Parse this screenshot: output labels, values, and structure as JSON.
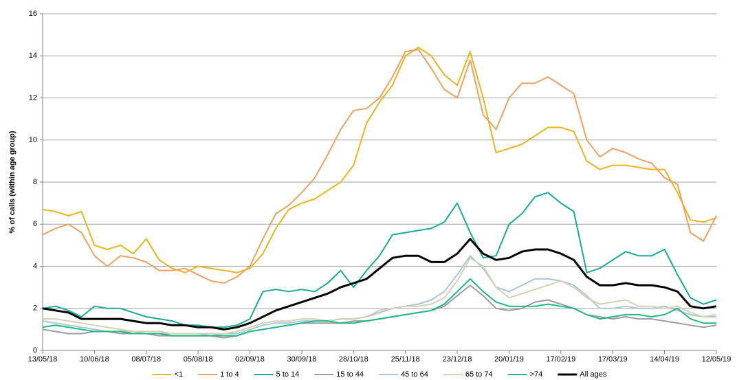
{
  "chart_data": {
    "type": "line",
    "y_label": "% of calls (within age group)",
    "x": [
      "13/05/18",
      "20/05/18",
      "27/05/18",
      "03/06/18",
      "10/06/18",
      "17/06/18",
      "24/06/18",
      "01/07/18",
      "08/07/18",
      "15/07/18",
      "22/07/18",
      "29/07/18",
      "05/08/18",
      "12/08/18",
      "19/08/18",
      "26/08/18",
      "02/09/18",
      "09/09/18",
      "16/09/18",
      "23/09/18",
      "30/09/18",
      "07/10/18",
      "14/10/18",
      "21/10/18",
      "28/10/18",
      "04/11/18",
      "11/11/18",
      "18/11/18",
      "25/11/18",
      "02/12/18",
      "09/12/18",
      "16/12/18",
      "23/12/18",
      "30/12/18",
      "06/01/19",
      "13/01/19",
      "20/01/19",
      "27/01/19",
      "03/02/19",
      "10/02/19",
      "17/02/19",
      "24/02/19",
      "03/03/19",
      "10/03/19",
      "17/03/19",
      "24/03/19",
      "31/03/19",
      "07/04/19",
      "14/04/19",
      "21/04/19",
      "28/04/19",
      "05/05/19",
      "12/05/19"
    ],
    "xlim": [
      "13/05/18",
      "12/05/19"
    ],
    "xticks": [
      "13/05/18",
      "10/06/18",
      "08/07/18",
      "05/08/18",
      "02/09/18",
      "30/09/18",
      "28/10/18",
      "25/11/18",
      "23/12/18",
      "20/01/19",
      "17/02/19",
      "17/03/19",
      "14/04/19",
      "12/05/19"
    ],
    "ylim": [
      0,
      16
    ],
    "yticks": [
      0,
      2,
      4,
      6,
      8,
      10,
      12,
      14,
      16
    ],
    "grid": true,
    "legend": "bottom",
    "series": [
      {
        "name": "<1",
        "color": "#e8b420",
        "width": 2,
        "values": [
          6.7,
          6.6,
          6.4,
          6.6,
          5.0,
          4.8,
          5.0,
          4.6,
          5.3,
          4.3,
          3.9,
          3.7,
          4.0,
          3.9,
          3.8,
          3.7,
          3.9,
          4.6,
          5.8,
          6.7,
          7.0,
          7.2,
          7.6,
          8.0,
          8.8,
          10.8,
          11.8,
          12.6,
          14.0,
          14.4,
          14.0,
          13.1,
          12.6,
          14.2,
          12.0,
          9.4,
          9.6,
          9.8,
          10.2,
          10.6,
          10.6,
          10.4,
          9.0,
          8.6,
          8.8,
          8.8,
          8.7,
          8.6,
          8.6,
          7.5,
          6.2,
          6.1,
          6.3
        ]
      },
      {
        "name": "1 to 4",
        "color": "#f0a060",
        "width": 2,
        "values": [
          5.5,
          5.8,
          6.0,
          5.6,
          4.5,
          4.0,
          4.5,
          4.4,
          4.2,
          3.8,
          3.8,
          3.9,
          3.6,
          3.3,
          3.2,
          3.5,
          4.0,
          5.3,
          6.5,
          6.9,
          7.5,
          8.2,
          9.3,
          10.5,
          11.4,
          11.5,
          12.0,
          13.0,
          14.2,
          14.3,
          13.4,
          12.4,
          12.0,
          13.8,
          11.2,
          10.5,
          12.0,
          12.7,
          12.7,
          13.0,
          12.6,
          12.2,
          10.0,
          9.2,
          9.6,
          9.4,
          9.1,
          8.9,
          8.2,
          7.9,
          5.6,
          5.2,
          6.4
        ]
      },
      {
        "name": "5 to 14",
        "color": "#1aa898",
        "width": 2,
        "values": [
          2.0,
          2.1,
          1.9,
          1.6,
          2.1,
          2.0,
          2.0,
          1.8,
          1.6,
          1.5,
          1.4,
          1.2,
          1.2,
          1.1,
          1.1,
          1.2,
          1.5,
          2.8,
          2.9,
          2.8,
          2.9,
          2.8,
          3.2,
          3.8,
          3.0,
          3.8,
          4.5,
          5.5,
          5.6,
          5.7,
          5.8,
          6.1,
          7.0,
          5.6,
          4.4,
          4.5,
          6.0,
          6.5,
          7.3,
          7.5,
          7.0,
          6.6,
          3.7,
          3.9,
          4.3,
          4.7,
          4.5,
          4.5,
          4.8,
          3.6,
          2.5,
          2.2,
          2.4
        ]
      },
      {
        "name": "15 to 44",
        "color": "#9a9aa8",
        "width": 2,
        "values": [
          1.0,
          0.9,
          0.8,
          0.8,
          0.9,
          0.9,
          0.8,
          0.8,
          0.8,
          0.7,
          0.7,
          0.7,
          0.7,
          0.7,
          0.6,
          0.7,
          0.9,
          1.0,
          1.1,
          1.2,
          1.3,
          1.3,
          1.3,
          1.3,
          1.4,
          1.4,
          1.5,
          1.6,
          1.7,
          1.8,
          1.9,
          2.1,
          2.6,
          3.1,
          2.6,
          2.0,
          1.9,
          2.0,
          2.3,
          2.4,
          2.2,
          2.0,
          1.7,
          1.6,
          1.5,
          1.6,
          1.5,
          1.5,
          1.4,
          1.3,
          1.2,
          1.1,
          1.2
        ]
      },
      {
        "name": "45 to 64",
        "color": "#a8c4dc",
        "width": 2,
        "values": [
          1.4,
          1.3,
          1.2,
          1.1,
          1.0,
          0.9,
          0.9,
          0.9,
          0.8,
          0.8,
          0.8,
          0.8,
          0.8,
          0.7,
          0.8,
          0.8,
          1.0,
          1.2,
          1.3,
          1.3,
          1.4,
          1.4,
          1.4,
          1.5,
          1.5,
          1.6,
          1.8,
          2.0,
          2.1,
          2.2,
          2.4,
          2.8,
          3.6,
          4.5,
          3.9,
          3.0,
          2.8,
          3.1,
          3.4,
          3.4,
          3.3,
          3.1,
          2.6,
          2.0,
          2.0,
          2.1,
          2.0,
          2.0,
          2.1,
          1.9,
          1.7,
          1.6,
          1.6
        ]
      },
      {
        "name": "65 to 74",
        "color": "#d4d0b0",
        "width": 2,
        "values": [
          1.5,
          1.5,
          1.4,
          1.3,
          1.2,
          1.1,
          1.0,
          0.9,
          0.9,
          0.9,
          0.8,
          0.8,
          0.8,
          0.8,
          0.8,
          0.9,
          1.1,
          1.3,
          1.4,
          1.4,
          1.5,
          1.5,
          1.4,
          1.5,
          1.5,
          1.6,
          1.9,
          2.0,
          2.1,
          2.1,
          2.2,
          2.5,
          3.3,
          4.4,
          4.0,
          3.0,
          2.5,
          2.7,
          2.9,
          3.1,
          3.3,
          3.0,
          2.5,
          2.2,
          2.3,
          2.4,
          2.1,
          2.1,
          2.0,
          2.1,
          1.8,
          1.6,
          1.7
        ]
      },
      {
        "name": ">74",
        "color": "#20b880",
        "width": 2,
        "values": [
          1.1,
          1.2,
          1.1,
          1.0,
          0.9,
          0.9,
          0.9,
          0.8,
          0.8,
          0.8,
          0.7,
          0.7,
          0.7,
          0.7,
          0.7,
          0.7,
          0.9,
          1.0,
          1.1,
          1.2,
          1.3,
          1.4,
          1.4,
          1.3,
          1.3,
          1.4,
          1.5,
          1.6,
          1.7,
          1.8,
          1.9,
          2.2,
          2.8,
          3.4,
          2.8,
          2.3,
          2.1,
          2.1,
          2.1,
          2.2,
          2.1,
          2.0,
          1.7,
          1.5,
          1.6,
          1.7,
          1.7,
          1.6,
          1.7,
          2.0,
          1.5,
          1.3,
          1.3
        ]
      },
      {
        "name": "All ages",
        "color": "#000000",
        "width": 3,
        "values": [
          2.0,
          1.9,
          1.8,
          1.5,
          1.5,
          1.5,
          1.5,
          1.4,
          1.3,
          1.3,
          1.2,
          1.2,
          1.1,
          1.1,
          1.0,
          1.1,
          1.3,
          1.6,
          1.9,
          2.1,
          2.3,
          2.5,
          2.7,
          3.0,
          3.2,
          3.4,
          3.9,
          4.4,
          4.5,
          4.5,
          4.2,
          4.2,
          4.6,
          5.3,
          4.6,
          4.3,
          4.4,
          4.7,
          4.8,
          4.8,
          4.6,
          4.3,
          3.5,
          3.1,
          3.1,
          3.2,
          3.1,
          3.1,
          3.0,
          2.8,
          2.1,
          2.0,
          2.1
        ]
      }
    ]
  }
}
